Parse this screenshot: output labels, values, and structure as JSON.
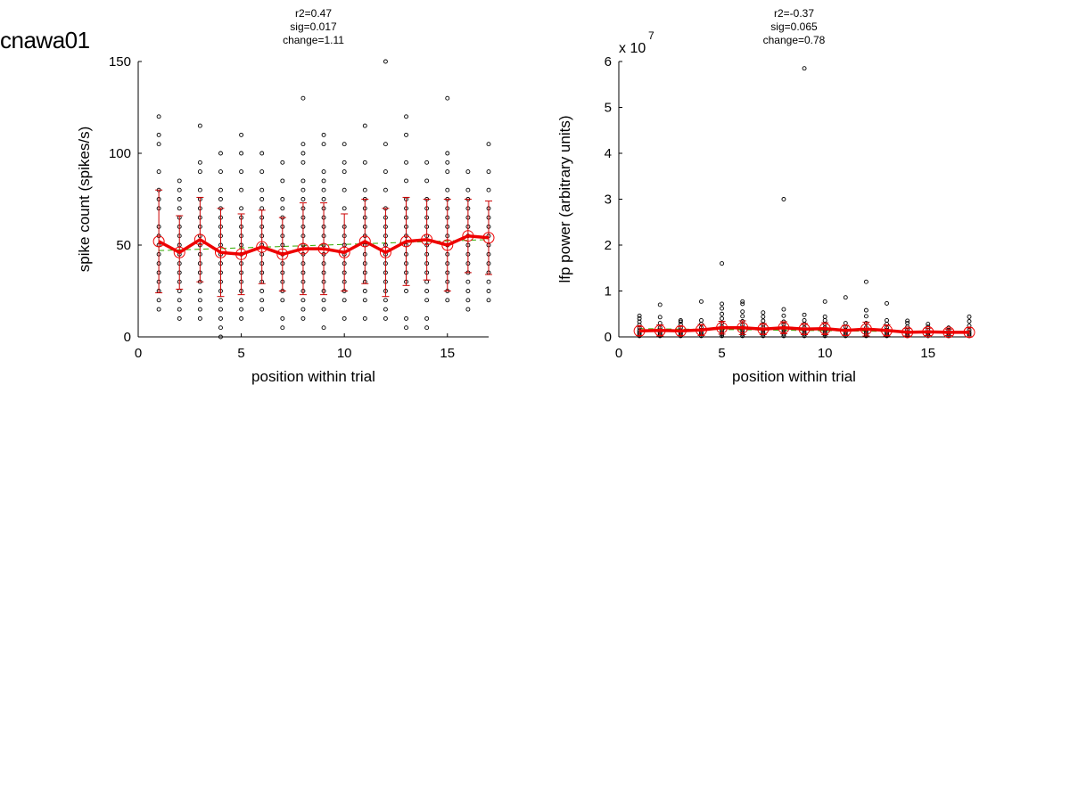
{
  "figure_title": "cnawa01",
  "colors": {
    "points": "#000000",
    "mean_line": "#ee0000",
    "errorbar": "#cc0000",
    "fit_line": "#33aa00"
  },
  "chart_data": [
    {
      "type": "scatter",
      "panel": "left",
      "stats": [
        "r2=0.47",
        "sig=0.017",
        "change=1.11"
      ],
      "xlabel": "position within trial",
      "ylabel": "spike count (spikes/s)",
      "xlim": [
        0,
        17
      ],
      "ylim": [
        0,
        150
      ],
      "xticks": [
        0,
        5,
        10,
        15
      ],
      "yticks": [
        0,
        50,
        100,
        150
      ],
      "points_by_position": [
        {
          "x": 1,
          "y": [
            15,
            20,
            25,
            30,
            35,
            40,
            45,
            50,
            55,
            60,
            70,
            75,
            80,
            90,
            105,
            110,
            120
          ]
        },
        {
          "x": 2,
          "y": [
            10,
            15,
            20,
            25,
            30,
            35,
            40,
            45,
            50,
            55,
            60,
            65,
            70,
            75,
            80,
            85
          ]
        },
        {
          "x": 3,
          "y": [
            10,
            15,
            20,
            25,
            30,
            35,
            40,
            45,
            50,
            55,
            60,
            65,
            70,
            75,
            80,
            90,
            95,
            115
          ]
        },
        {
          "x": 4,
          "y": [
            0,
            5,
            10,
            15,
            20,
            25,
            30,
            35,
            40,
            45,
            50,
            55,
            60,
            65,
            70,
            75,
            80,
            90,
            100
          ]
        },
        {
          "x": 5,
          "y": [
            10,
            15,
            20,
            25,
            30,
            35,
            40,
            45,
            50,
            55,
            60,
            65,
            70,
            80,
            90,
            100,
            110
          ]
        },
        {
          "x": 6,
          "y": [
            15,
            20,
            25,
            30,
            35,
            40,
            45,
            50,
            55,
            60,
            65,
            70,
            75,
            80,
            90,
            100
          ]
        },
        {
          "x": 7,
          "y": [
            5,
            10,
            20,
            25,
            30,
            35,
            40,
            45,
            50,
            55,
            60,
            65,
            70,
            75,
            85,
            95
          ]
        },
        {
          "x": 8,
          "y": [
            10,
            15,
            20,
            25,
            30,
            35,
            40,
            45,
            50,
            55,
            60,
            65,
            70,
            75,
            80,
            85,
            95,
            100,
            105,
            130
          ]
        },
        {
          "x": 9,
          "y": [
            5,
            15,
            20,
            25,
            30,
            35,
            40,
            45,
            50,
            55,
            60,
            65,
            70,
            75,
            80,
            85,
            90,
            105,
            110
          ]
        },
        {
          "x": 10,
          "y": [
            10,
            20,
            25,
            30,
            35,
            40,
            45,
            50,
            55,
            60,
            70,
            80,
            90,
            95,
            105
          ]
        },
        {
          "x": 11,
          "y": [
            10,
            20,
            25,
            30,
            35,
            40,
            45,
            50,
            55,
            60,
            65,
            70,
            75,
            80,
            95,
            115
          ]
        },
        {
          "x": 12,
          "y": [
            10,
            15,
            20,
            25,
            30,
            35,
            40,
            45,
            50,
            55,
            60,
            65,
            70,
            80,
            90,
            105,
            150
          ]
        },
        {
          "x": 13,
          "y": [
            5,
            10,
            25,
            30,
            35,
            40,
            45,
            50,
            55,
            60,
            65,
            70,
            75,
            85,
            95,
            110,
            120
          ]
        },
        {
          "x": 14,
          "y": [
            5,
            10,
            20,
            25,
            30,
            35,
            40,
            45,
            50,
            55,
            60,
            65,
            70,
            75,
            85,
            95
          ]
        },
        {
          "x": 15,
          "y": [
            20,
            25,
            30,
            35,
            40,
            45,
            50,
            55,
            60,
            65,
            70,
            75,
            80,
            90,
            95,
            100,
            130
          ]
        },
        {
          "x": 16,
          "y": [
            15,
            20,
            25,
            30,
            35,
            40,
            45,
            50,
            55,
            60,
            65,
            70,
            75,
            80,
            90
          ]
        },
        {
          "x": 17,
          "y": [
            20,
            25,
            30,
            35,
            40,
            45,
            50,
            55,
            60,
            65,
            70,
            80,
            90,
            105
          ]
        }
      ],
      "mean": [
        52,
        46,
        53,
        46,
        45,
        49,
        45,
        48,
        48,
        46,
        52,
        46,
        52,
        53,
        50,
        55,
        54
      ],
      "sd": [
        28,
        20,
        23,
        24,
        22,
        20,
        20,
        25,
        25,
        21,
        23,
        24,
        24,
        22,
        25,
        20,
        20
      ],
      "fit": [
        47,
        53
      ]
    },
    {
      "type": "scatter",
      "panel": "right",
      "stats": [
        "r2=-0.37",
        "sig=0.065",
        "change=0.78"
      ],
      "xlabel": "position within trial",
      "ylabel": "lfp power (arbitrary units)",
      "y_multiplier_base": "x 10",
      "y_multiplier_exp": "7",
      "xlim": [
        0,
        17
      ],
      "ylim": [
        0,
        6
      ],
      "xticks": [
        0,
        5,
        10,
        15
      ],
      "yticks": [
        0,
        1,
        2,
        3,
        4,
        5,
        6
      ],
      "points_by_position": [
        {
          "x": 1,
          "y": [
            0.02,
            0.06,
            0.1,
            0.14,
            0.2,
            0.26,
            0.33,
            0.4,
            0.46
          ]
        },
        {
          "x": 2,
          "y": [
            0.02,
            0.06,
            0.1,
            0.14,
            0.2,
            0.3,
            0.43,
            0.7
          ]
        },
        {
          "x": 3,
          "y": [
            0.02,
            0.06,
            0.1,
            0.14,
            0.2,
            0.27,
            0.33,
            0.36
          ]
        },
        {
          "x": 4,
          "y": [
            0.02,
            0.06,
            0.1,
            0.15,
            0.2,
            0.28,
            0.36,
            0.77
          ]
        },
        {
          "x": 5,
          "y": [
            0.02,
            0.06,
            0.1,
            0.15,
            0.22,
            0.3,
            0.4,
            0.5,
            0.62,
            0.72,
            1.6
          ]
        },
        {
          "x": 6,
          "y": [
            0.02,
            0.06,
            0.1,
            0.15,
            0.2,
            0.26,
            0.34,
            0.45,
            0.55,
            0.72,
            0.77
          ]
        },
        {
          "x": 7,
          "y": [
            0.02,
            0.06,
            0.1,
            0.15,
            0.2,
            0.27,
            0.35,
            0.44,
            0.53
          ]
        },
        {
          "x": 8,
          "y": [
            0.02,
            0.06,
            0.1,
            0.15,
            0.2,
            0.27,
            0.33,
            0.46,
            0.6,
            3.0
          ]
        },
        {
          "x": 9,
          "y": [
            0.02,
            0.06,
            0.1,
            0.15,
            0.2,
            0.28,
            0.36,
            0.48,
            5.85
          ]
        },
        {
          "x": 10,
          "y": [
            0.02,
            0.06,
            0.1,
            0.15,
            0.2,
            0.28,
            0.36,
            0.44,
            0.77
          ]
        },
        {
          "x": 11,
          "y": [
            0.02,
            0.06,
            0.1,
            0.15,
            0.22,
            0.3,
            0.86
          ]
        },
        {
          "x": 12,
          "y": [
            0.02,
            0.06,
            0.1,
            0.15,
            0.2,
            0.3,
            0.45,
            0.58,
            1.2
          ]
        },
        {
          "x": 13,
          "y": [
            0.02,
            0.06,
            0.1,
            0.15,
            0.2,
            0.28,
            0.36,
            0.73
          ]
        },
        {
          "x": 14,
          "y": [
            0.02,
            0.06,
            0.1,
            0.15,
            0.22,
            0.3,
            0.35
          ]
        },
        {
          "x": 15,
          "y": [
            0.02,
            0.06,
            0.1,
            0.15,
            0.22,
            0.28
          ]
        },
        {
          "x": 16,
          "y": [
            0.02,
            0.06,
            0.1,
            0.15,
            0.2
          ]
        },
        {
          "x": 17,
          "y": [
            0.02,
            0.06,
            0.1,
            0.15,
            0.24,
            0.34,
            0.44
          ]
        }
      ],
      "mean": [
        0.13,
        0.14,
        0.13,
        0.15,
        0.2,
        0.2,
        0.17,
        0.2,
        0.17,
        0.18,
        0.14,
        0.17,
        0.14,
        0.1,
        0.11,
        0.1,
        0.1
      ],
      "sd": [
        0.1,
        0.12,
        0.1,
        0.12,
        0.14,
        0.15,
        0.12,
        0.13,
        0.12,
        0.13,
        0.11,
        0.15,
        0.12,
        0.08,
        0.08,
        0.07,
        0.1
      ],
      "fit": [
        0.18,
        0.1
      ]
    }
  ]
}
